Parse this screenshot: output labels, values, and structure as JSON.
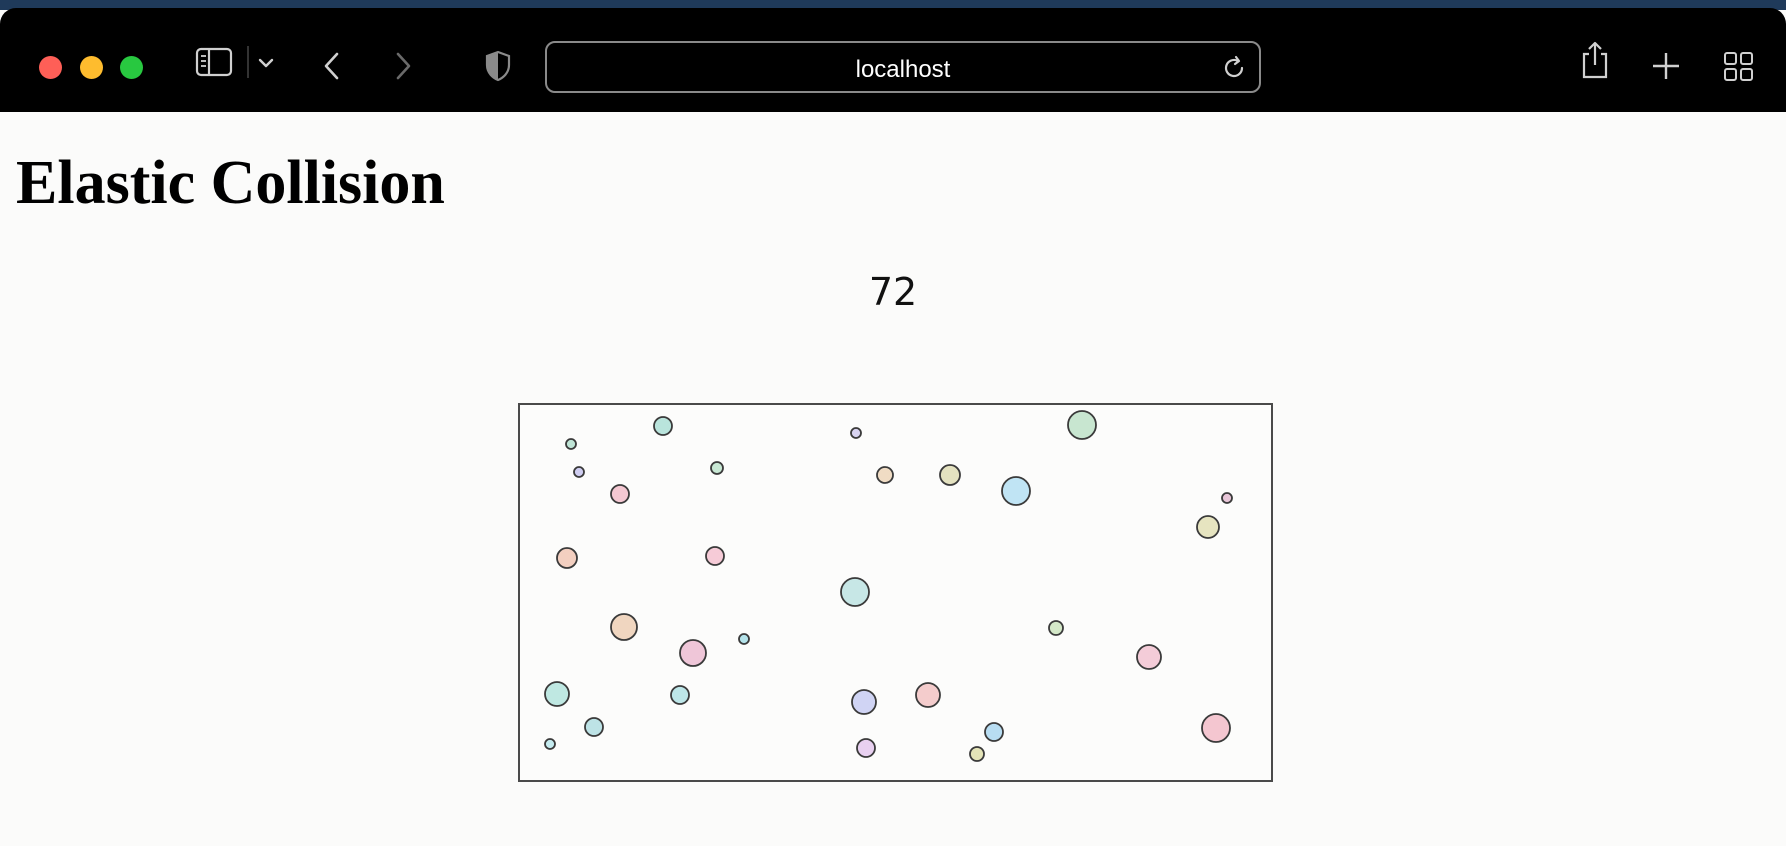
{
  "browser": {
    "address": "localhost"
  },
  "page": {
    "title": "Elastic Collision",
    "counter": "72"
  },
  "balls": [
    {
      "color": "#b9e4dc"
    },
    {
      "color": "#bfe5d6"
    },
    {
      "color": "#c8e8d4"
    },
    {
      "color": "#cfcdf0"
    },
    {
      "color": "#f3cfc0"
    },
    {
      "color": "#f4c8d2"
    },
    {
      "color": "#f6cbd7"
    },
    {
      "color": "#f0d6c0"
    },
    {
      "color": "#efc6d8"
    },
    {
      "color": "#bfe8e2"
    },
    {
      "color": "#bde6e8"
    },
    {
      "color": "#bde3e6"
    },
    {
      "color": "#c5ecf0"
    },
    {
      "color": "#b4e3ea"
    },
    {
      "color": "#c7e7e6"
    },
    {
      "color": "#d8d3f0"
    },
    {
      "color": "#f0dcc4"
    },
    {
      "color": "#e4e2c0"
    },
    {
      "color": "#c0e4f4"
    },
    {
      "color": "#f4cccc"
    },
    {
      "color": "#d0d4f4"
    },
    {
      "color": "#e8d0f0"
    },
    {
      "color": "#e4e4b8"
    },
    {
      "color": "#b8ddf2"
    },
    {
      "color": "#f4ccd8"
    },
    {
      "color": "#d4e8c8"
    },
    {
      "color": "#e8c6d8"
    },
    {
      "color": "#e6e4c0"
    },
    {
      "color": "#c8e6d0"
    },
    {
      "color": "#f4c6d0"
    },
    {
      "color": "#d2e4c2"
    }
  ]
}
